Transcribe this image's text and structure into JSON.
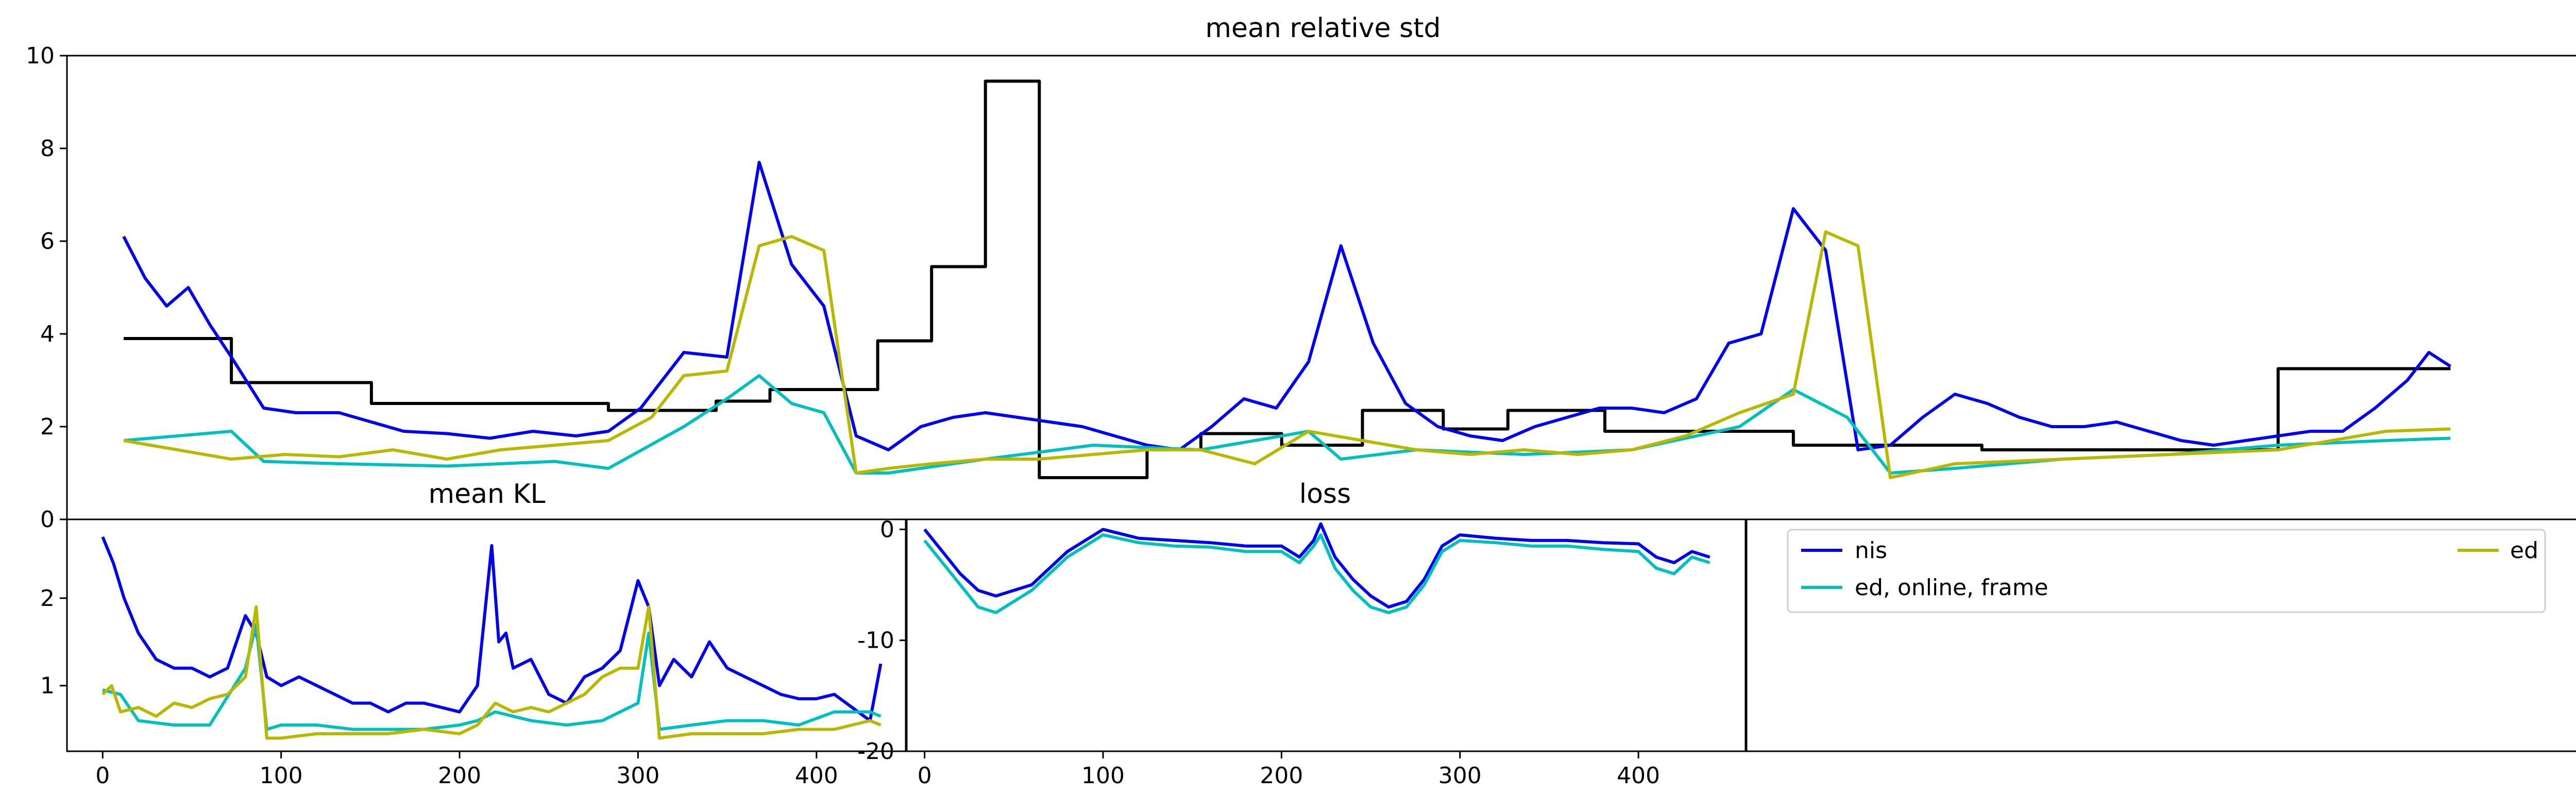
{
  "colors": {
    "nis": "#0000ee",
    "ed_online_frame": "#00bfbf",
    "ed": "#b8b800",
    "black_step": "#000000"
  },
  "chart_data": [
    {
      "type": "line",
      "title": "mean relative std",
      "x_ticks": [],
      "y_ticks": [
        0,
        2,
        4,
        6,
        8,
        10
      ],
      "xlim": [
        0,
        440
      ],
      "ylim": [
        0,
        10
      ],
      "series": [
        {
          "key": "black_step",
          "x": [
            0,
            20,
            20,
            46,
            46,
            90,
            90,
            110,
            110,
            120,
            120,
            140,
            140,
            150,
            150,
            160,
            160,
            170,
            170,
            190,
            190,
            200,
            200,
            215,
            215,
            230,
            230,
            245,
            245,
            257,
            257,
            275,
            275,
            310,
            310,
            345,
            345,
            400,
            400,
            432
          ],
          "y": [
            3.9,
            3.9,
            2.95,
            2.95,
            2.5,
            2.5,
            2.35,
            2.35,
            2.55,
            2.55,
            2.8,
            2.8,
            3.85,
            3.85,
            5.45,
            5.45,
            9.45,
            9.45,
            0.9,
            0.9,
            1.5,
            1.5,
            1.85,
            1.85,
            1.6,
            1.6,
            2.35,
            2.35,
            1.95,
            1.95,
            2.35,
            2.35,
            1.9,
            1.9,
            1.6,
            1.6,
            1.5,
            1.5,
            3.25,
            3.25
          ]
        },
        {
          "key": "nis",
          "x": [
            0,
            4,
            8,
            12,
            16,
            20,
            26,
            32,
            40,
            46,
            52,
            60,
            68,
            76,
            84,
            90,
            96,
            104,
            112,
            118,
            124,
            130,
            136,
            142,
            148,
            154,
            160,
            166,
            172,
            178,
            184,
            190,
            196,
            202,
            208,
            214,
            220,
            226,
            232,
            238,
            244,
            250,
            256,
            262,
            268,
            274,
            280,
            286,
            292,
            298,
            304,
            310,
            316,
            322,
            328,
            334,
            340,
            346,
            352,
            358,
            364,
            370,
            376,
            382,
            388,
            394,
            400,
            406,
            412,
            418,
            424,
            428,
            432
          ],
          "y": [
            6.1,
            5.2,
            4.6,
            5.0,
            4.2,
            3.5,
            2.4,
            2.3,
            2.3,
            2.1,
            1.9,
            1.85,
            1.75,
            1.9,
            1.8,
            1.9,
            2.4,
            3.6,
            3.5,
            7.7,
            5.5,
            4.6,
            1.8,
            1.5,
            2.0,
            2.2,
            2.3,
            2.2,
            2.1,
            2.0,
            1.8,
            1.6,
            1.5,
            2.0,
            2.6,
            2.4,
            3.4,
            5.9,
            3.8,
            2.5,
            2.0,
            1.8,
            1.7,
            2.0,
            2.2,
            2.4,
            2.4,
            2.3,
            2.6,
            3.8,
            4.0,
            6.7,
            5.8,
            1.5,
            1.6,
            2.2,
            2.7,
            2.5,
            2.2,
            2.0,
            2.0,
            2.1,
            1.9,
            1.7,
            1.6,
            1.7,
            1.8,
            1.9,
            1.9,
            2.4,
            3.0,
            3.6,
            3.3
          ]
        },
        {
          "key": "ed_online_frame",
          "x": [
            0,
            20,
            26,
            40,
            60,
            80,
            90,
            104,
            112,
            118,
            124,
            130,
            136,
            142,
            160,
            180,
            200,
            220,
            226,
            240,
            260,
            280,
            300,
            310,
            320,
            328,
            340,
            360,
            380,
            400,
            420,
            432
          ],
          "y": [
            1.7,
            1.9,
            1.25,
            1.2,
            1.15,
            1.25,
            1.1,
            2.0,
            2.6,
            3.1,
            2.5,
            2.3,
            1.0,
            1.0,
            1.3,
            1.6,
            1.5,
            1.9,
            1.3,
            1.5,
            1.4,
            1.5,
            2.0,
            2.8,
            2.2,
            1.0,
            1.1,
            1.3,
            1.4,
            1.6,
            1.7,
            1.75
          ]
        },
        {
          "key": "ed",
          "x": [
            0,
            10,
            20,
            30,
            40,
            50,
            60,
            70,
            80,
            90,
            98,
            104,
            112,
            118,
            124,
            130,
            136,
            142,
            150,
            160,
            170,
            180,
            190,
            200,
            210,
            220,
            230,
            240,
            250,
            260,
            270,
            280,
            290,
            300,
            310,
            316,
            322,
            328,
            340,
            360,
            380,
            400,
            420,
            432
          ],
          "y": [
            1.7,
            1.5,
            1.3,
            1.4,
            1.35,
            1.5,
            1.3,
            1.5,
            1.6,
            1.7,
            2.2,
            3.1,
            3.2,
            5.9,
            6.1,
            5.8,
            1.0,
            1.1,
            1.2,
            1.3,
            1.3,
            1.4,
            1.5,
            1.5,
            1.2,
            1.9,
            1.7,
            1.5,
            1.4,
            1.5,
            1.4,
            1.5,
            1.8,
            2.3,
            2.7,
            6.2,
            5.9,
            0.9,
            1.2,
            1.3,
            1.4,
            1.5,
            1.9,
            1.95
          ]
        }
      ]
    },
    {
      "type": "line",
      "title": "mean KL",
      "x_ticks": [
        0,
        100,
        200,
        300,
        400
      ],
      "y_ticks": [
        1,
        2
      ],
      "xlim": [
        -20,
        450
      ],
      "ylim": [
        0.25,
        2.9
      ],
      "series": [
        {
          "key": "nis",
          "x": [
            0,
            6,
            12,
            20,
            30,
            40,
            50,
            60,
            70,
            80,
            86,
            92,
            100,
            110,
            120,
            130,
            140,
            150,
            160,
            170,
            180,
            190,
            200,
            210,
            218,
            222,
            226,
            230,
            240,
            250,
            260,
            270,
            280,
            290,
            300,
            306,
            312,
            320,
            330,
            340,
            350,
            360,
            370,
            380,
            390,
            400,
            410,
            420,
            430,
            436
          ],
          "y": [
            2.7,
            2.4,
            2.0,
            1.6,
            1.3,
            1.2,
            1.2,
            1.1,
            1.2,
            1.8,
            1.6,
            1.1,
            1.0,
            1.1,
            1.0,
            0.9,
            0.8,
            0.8,
            0.7,
            0.8,
            0.8,
            0.75,
            0.7,
            1.0,
            2.6,
            1.5,
            1.6,
            1.2,
            1.3,
            0.9,
            0.8,
            1.1,
            1.2,
            1.4,
            2.2,
            1.9,
            1.0,
            1.3,
            1.1,
            1.5,
            1.2,
            1.1,
            1.0,
            0.9,
            0.85,
            0.85,
            0.9,
            0.75,
            0.6,
            1.25
          ]
        },
        {
          "key": "ed_online_frame",
          "x": [
            0,
            10,
            20,
            40,
            60,
            80,
            86,
            92,
            100,
            120,
            140,
            160,
            180,
            200,
            210,
            220,
            240,
            260,
            280,
            300,
            306,
            312,
            330,
            350,
            370,
            390,
            410,
            430,
            436
          ],
          "y": [
            0.95,
            0.9,
            0.6,
            0.55,
            0.55,
            1.2,
            1.7,
            0.5,
            0.55,
            0.55,
            0.5,
            0.5,
            0.5,
            0.55,
            0.6,
            0.7,
            0.6,
            0.55,
            0.6,
            0.8,
            1.6,
            0.5,
            0.55,
            0.6,
            0.6,
            0.55,
            0.7,
            0.7,
            0.65
          ]
        },
        {
          "key": "ed",
          "x": [
            0,
            5,
            10,
            20,
            30,
            40,
            50,
            60,
            70,
            80,
            86,
            92,
            100,
            120,
            140,
            160,
            180,
            200,
            210,
            220,
            230,
            240,
            250,
            260,
            270,
            280,
            290,
            300,
            306,
            312,
            330,
            350,
            370,
            390,
            410,
            430,
            436
          ],
          "y": [
            0.9,
            1.0,
            0.7,
            0.75,
            0.65,
            0.8,
            0.75,
            0.85,
            0.9,
            1.1,
            1.9,
            0.4,
            0.4,
            0.45,
            0.45,
            0.45,
            0.5,
            0.45,
            0.55,
            0.8,
            0.7,
            0.75,
            0.7,
            0.8,
            0.9,
            1.1,
            1.2,
            1.2,
            1.9,
            0.4,
            0.45,
            0.45,
            0.45,
            0.5,
            0.5,
            0.6,
            0.55
          ]
        }
      ]
    },
    {
      "type": "line",
      "title": "loss",
      "x_ticks": [
        0,
        100,
        200,
        300,
        400
      ],
      "y_ticks": [
        0,
        -10,
        -20
      ],
      "xlim": [
        -10,
        460
      ],
      "ylim": [
        -20,
        0.9
      ],
      "series": [
        {
          "key": "nis",
          "x": [
            0,
            10,
            20,
            30,
            40,
            50,
            60,
            70,
            80,
            90,
            100,
            120,
            140,
            160,
            180,
            200,
            210,
            218,
            222,
            230,
            240,
            250,
            260,
            270,
            280,
            290,
            300,
            320,
            340,
            360,
            380,
            400,
            410,
            420,
            430,
            440
          ],
          "y": [
            0,
            -2,
            -4,
            -5.5,
            -6,
            -5.5,
            -5,
            -3.5,
            -2,
            -1,
            0,
            -0.8,
            -1,
            -1.2,
            -1.5,
            -1.5,
            -2.5,
            -1,
            0.5,
            -2.5,
            -4.5,
            -6,
            -7,
            -6.5,
            -4.5,
            -1.5,
            -0.5,
            -0.8,
            -1,
            -1,
            -1.2,
            -1.3,
            -2.5,
            -3,
            -2,
            -2.5
          ]
        },
        {
          "key": "ed_online_frame",
          "x": [
            0,
            10,
            20,
            30,
            40,
            50,
            60,
            70,
            80,
            90,
            100,
            120,
            140,
            160,
            180,
            200,
            210,
            218,
            222,
            230,
            240,
            250,
            260,
            270,
            280,
            290,
            300,
            320,
            340,
            360,
            380,
            400,
            410,
            420,
            430,
            440
          ],
          "y": [
            -1,
            -3,
            -5,
            -7,
            -7.5,
            -6.5,
            -5.5,
            -4,
            -2.5,
            -1.5,
            -0.5,
            -1.2,
            -1.5,
            -1.6,
            -2,
            -2,
            -3,
            -1.5,
            -0.5,
            -3.5,
            -5.5,
            -7,
            -7.5,
            -7,
            -5,
            -2,
            -1,
            -1.2,
            -1.5,
            -1.5,
            -1.8,
            -2,
            -3.5,
            -4,
            -2.5,
            -3
          ]
        }
      ]
    }
  ],
  "legend": {
    "entries": [
      {
        "key": "nis",
        "label": "nis"
      },
      {
        "key": "ed_online_frame",
        "label": "ed, online, frame"
      },
      {
        "key": "ed",
        "label": "ed"
      }
    ]
  }
}
